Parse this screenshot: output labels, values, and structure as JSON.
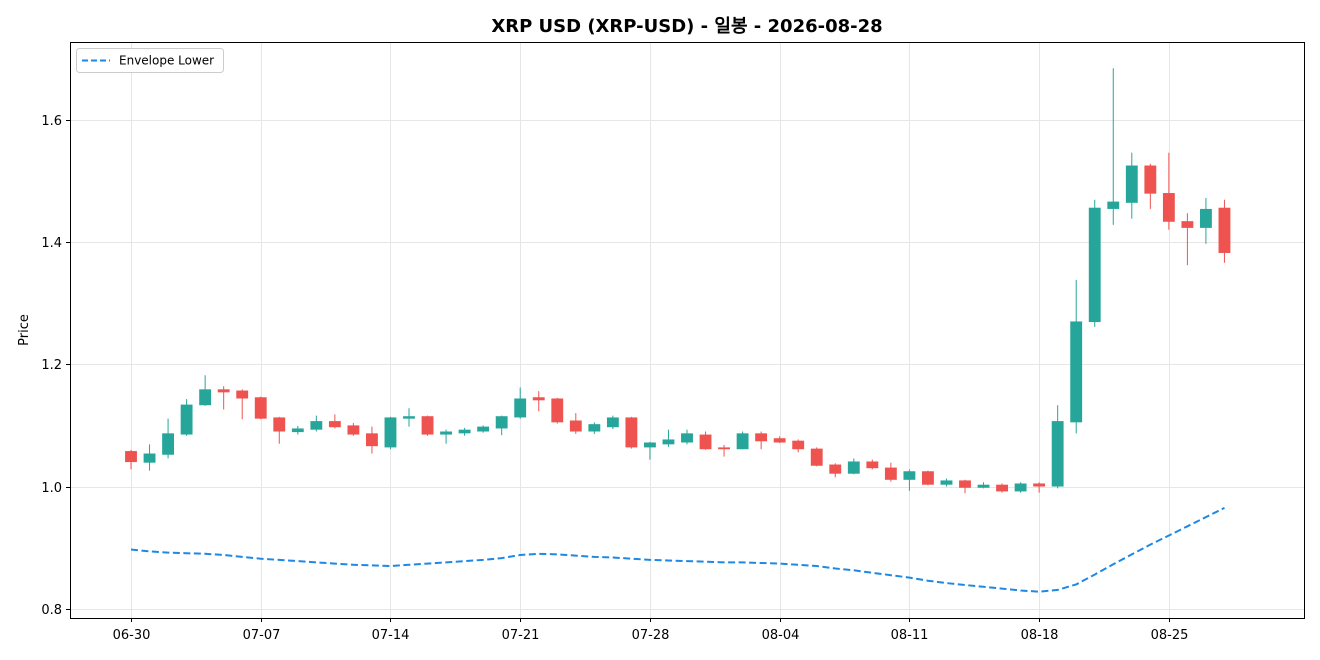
{
  "chart_data": {
    "type": "candlestick",
    "title": "XRP USD (XRP-USD) - 일봉 - 2026-08-28",
    "xlabel": "",
    "ylabel": "Price",
    "x": [
      "2026-06-30",
      "2026-07-01",
      "2026-07-02",
      "2026-07-03",
      "2026-07-04",
      "2026-07-05",
      "2026-07-06",
      "2026-07-07",
      "2026-07-08",
      "2026-07-09",
      "2026-07-10",
      "2026-07-11",
      "2026-07-12",
      "2026-07-13",
      "2026-07-14",
      "2026-07-15",
      "2026-07-16",
      "2026-07-17",
      "2026-07-18",
      "2026-07-19",
      "2026-07-20",
      "2026-07-21",
      "2026-07-22",
      "2026-07-23",
      "2026-07-24",
      "2026-07-25",
      "2026-07-26",
      "2026-07-27",
      "2026-07-28",
      "2026-07-29",
      "2026-07-30",
      "2026-07-31",
      "2026-08-01",
      "2026-08-02",
      "2026-08-03",
      "2026-08-04",
      "2026-08-05",
      "2026-08-06",
      "2026-08-07",
      "2026-08-08",
      "2026-08-09",
      "2026-08-10",
      "2026-08-11",
      "2026-08-12",
      "2026-08-13",
      "2026-08-14",
      "2026-08-15",
      "2026-08-16",
      "2026-08-17",
      "2026-08-18",
      "2026-08-19",
      "2026-08-20",
      "2026-08-21",
      "2026-08-22",
      "2026-08-23",
      "2026-08-24",
      "2026-08-25",
      "2026-08-26",
      "2026-08-27",
      "2026-08-28"
    ],
    "open": [
      1.058,
      1.039,
      1.052,
      1.085,
      1.133,
      1.159,
      1.157,
      1.146,
      1.113,
      1.089,
      1.093,
      1.107,
      1.1,
      1.087,
      1.064,
      1.111,
      1.115,
      1.085,
      1.087,
      1.09,
      1.095,
      1.113,
      1.146,
      1.144,
      1.108,
      1.09,
      1.097,
      1.113,
      1.064,
      1.069,
      1.072,
      1.085,
      1.064,
      1.061,
      1.087,
      1.079,
      1.075,
      1.062,
      1.036,
      1.021,
      1.041,
      1.031,
      1.011,
      1.025,
      1.003,
      1.01,
      0.998,
      1.003,
      0.992,
      1.005,
      1.0,
      1.105,
      1.269,
      1.454,
      1.464,
      1.525,
      1.48,
      1.434,
      1.423,
      1.456
    ],
    "high": [
      1.06,
      1.069,
      1.111,
      1.143,
      1.182,
      1.164,
      1.159,
      1.147,
      1.114,
      1.099,
      1.116,
      1.118,
      1.104,
      1.098,
      1.114,
      1.128,
      1.116,
      1.093,
      1.096,
      1.1,
      1.116,
      1.162,
      1.156,
      1.145,
      1.12,
      1.105,
      1.116,
      1.114,
      1.073,
      1.093,
      1.093,
      1.09,
      1.068,
      1.09,
      1.09,
      1.082,
      1.077,
      1.064,
      1.038,
      1.046,
      1.044,
      1.039,
      1.028,
      1.026,
      1.013,
      1.011,
      1.007,
      1.005,
      1.007,
      1.007,
      1.133,
      1.338,
      1.469,
      1.684,
      1.546,
      1.528,
      1.546,
      1.447,
      1.472,
      1.469
    ],
    "low": [
      1.028,
      1.026,
      1.046,
      1.083,
      1.132,
      1.126,
      1.11,
      1.11,
      1.07,
      1.085,
      1.09,
      1.095,
      1.083,
      1.054,
      1.061,
      1.098,
      1.083,
      1.07,
      1.083,
      1.088,
      1.084,
      1.111,
      1.123,
      1.103,
      1.086,
      1.086,
      1.094,
      1.062,
      1.044,
      1.065,
      1.069,
      1.06,
      1.049,
      1.061,
      1.061,
      1.071,
      1.056,
      1.033,
      1.015,
      1.02,
      1.028,
      1.008,
      0.993,
      1.002,
      1.0,
      0.989,
      0.997,
      0.99,
      0.99,
      0.99,
      0.997,
      1.087,
      1.261,
      1.428,
      1.438,
      1.454,
      1.42,
      1.362,
      1.397,
      1.366
    ],
    "close": [
      1.04,
      1.054,
      1.087,
      1.134,
      1.159,
      1.154,
      1.144,
      1.111,
      1.09,
      1.095,
      1.107,
      1.097,
      1.085,
      1.066,
      1.113,
      1.115,
      1.085,
      1.09,
      1.093,
      1.098,
      1.115,
      1.144,
      1.141,
      1.105,
      1.09,
      1.102,
      1.113,
      1.064,
      1.072,
      1.077,
      1.087,
      1.061,
      1.061,
      1.087,
      1.074,
      1.072,
      1.061,
      1.034,
      1.021,
      1.041,
      1.03,
      1.011,
      1.025,
      1.003,
      1.01,
      0.998,
      1.003,
      0.992,
      1.005,
      1.0,
      1.107,
      1.27,
      1.456,
      1.466,
      1.525,
      1.479,
      1.433,
      1.423,
      1.454,
      1.382
    ],
    "series": [
      {
        "name": "Envelope Lower",
        "type": "line",
        "style": "dashed",
        "color": "#1e88e5",
        "values": [
          0.897,
          0.894,
          0.892,
          0.891,
          0.89,
          0.888,
          0.885,
          0.882,
          0.88,
          0.878,
          0.876,
          0.874,
          0.872,
          0.871,
          0.87,
          0.872,
          0.874,
          0.876,
          0.878,
          0.88,
          0.883,
          0.888,
          0.89,
          0.889,
          0.887,
          0.885,
          0.884,
          0.882,
          0.88,
          0.879,
          0.878,
          0.877,
          0.876,
          0.876,
          0.875,
          0.874,
          0.872,
          0.87,
          0.866,
          0.863,
          0.859,
          0.855,
          0.851,
          0.846,
          0.842,
          0.839,
          0.836,
          0.833,
          0.83,
          0.828,
          0.831,
          0.84,
          0.856,
          0.873,
          0.889,
          0.905,
          0.92,
          0.935,
          0.95,
          0.965
        ]
      }
    ],
    "xticks": [
      "06-30",
      "07-07",
      "07-14",
      "07-21",
      "07-28",
      "08-04",
      "08-11",
      "08-18",
      "08-25"
    ],
    "yticks": [
      "0.8",
      "1.0",
      "1.2",
      "1.4",
      "1.6"
    ],
    "xlim": [
      "2026-06-26T17:00",
      "2026-09-01T07:00"
    ],
    "ylim": [
      0.785,
      1.727
    ],
    "grid": true,
    "legend": "top-left",
    "colors": {
      "up": "#26a69a",
      "down": "#ef5350",
      "grid": "#e6e6e6",
      "axis": "#000000"
    }
  }
}
